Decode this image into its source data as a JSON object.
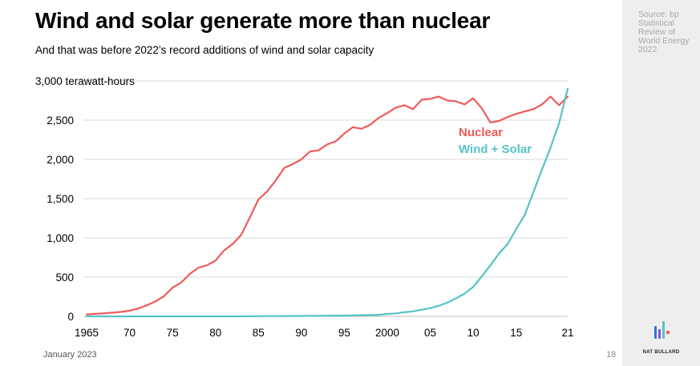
{
  "header": {
    "title": "Wind and solar generate more than nuclear",
    "subtitle": "And that was before 2022’s record additions of wind and solar capacity"
  },
  "sidebar": {
    "source": "Source: bp Statistical Review of World Energy 2022",
    "brand": "NAT BULLARD"
  },
  "footer": {
    "date": "January 2023",
    "page": "18"
  },
  "colors": {
    "nuclear": "#f05a5a",
    "wind_solar": "#56c3c6",
    "grid": "#d9d9d9",
    "logo": [
      "#3a6fd8",
      "#8a4fd1",
      "#56c3c6",
      "#f05a5a"
    ]
  },
  "chart_data": {
    "type": "line",
    "title": "Wind and solar generate more than nuclear",
    "subtitle": "And that was before 2022’s record additions of wind and solar capacity",
    "ylabel": "terawatt-hours",
    "ylabel_top": "3,000 terawatt-hours",
    "ylim": [
      0,
      3000
    ],
    "xlim": [
      1965,
      2021
    ],
    "grid": "horizontal",
    "y_ticks": [
      {
        "value": 3000,
        "label": ""
      },
      {
        "value": 2500,
        "label": "2,500"
      },
      {
        "value": 2000,
        "label": "2,000"
      },
      {
        "value": 1500,
        "label": "1,500"
      },
      {
        "value": 1000,
        "label": "1,000"
      },
      {
        "value": 500,
        "label": "500"
      },
      {
        "value": 0,
        "label": "0"
      }
    ],
    "x_ticks": [
      {
        "value": 1965,
        "label": "1965"
      },
      {
        "value": 1970,
        "label": "70"
      },
      {
        "value": 1975,
        "label": "75"
      },
      {
        "value": 1980,
        "label": "80"
      },
      {
        "value": 1985,
        "label": "85"
      },
      {
        "value": 1990,
        "label": "90"
      },
      {
        "value": 1995,
        "label": "95"
      },
      {
        "value": 2000,
        "label": "2000"
      },
      {
        "value": 2005,
        "label": "05"
      },
      {
        "value": 2010,
        "label": "10"
      },
      {
        "value": 2015,
        "label": "15"
      },
      {
        "value": 2021,
        "label": "21"
      }
    ],
    "x": [
      1965,
      1966,
      1967,
      1968,
      1969,
      1970,
      1971,
      1972,
      1973,
      1974,
      1975,
      1976,
      1977,
      1978,
      1979,
      1980,
      1981,
      1982,
      1983,
      1984,
      1985,
      1986,
      1987,
      1988,
      1989,
      1990,
      1991,
      1992,
      1993,
      1994,
      1995,
      1996,
      1997,
      1998,
      1999,
      2000,
      2001,
      2002,
      2003,
      2004,
      2005,
      2006,
      2007,
      2008,
      2009,
      2010,
      2011,
      2012,
      2013,
      2014,
      2015,
      2016,
      2017,
      2018,
      2019,
      2020,
      2021
    ],
    "series": [
      {
        "name": "Nuclear",
        "values": [
          24,
          32,
          39,
          47,
          56,
          72,
          100,
          140,
          190,
          255,
          365,
          430,
          540,
          620,
          650,
          710,
          840,
          920,
          1040,
          1260,
          1490,
          1590,
          1730,
          1890,
          1940,
          2000,
          2100,
          2115,
          2190,
          2230,
          2330,
          2410,
          2390,
          2440,
          2530,
          2590,
          2660,
          2690,
          2640,
          2760,
          2770,
          2800,
          2750,
          2740,
          2700,
          2780,
          2650,
          2470,
          2490,
          2540,
          2580,
          2610,
          2640,
          2700,
          2800,
          2690,
          2800
        ]
      },
      {
        "name": "Wind + Solar",
        "values": [
          0,
          0,
          0,
          0,
          0,
          0,
          0,
          0,
          0,
          0,
          0,
          0,
          0,
          0,
          0,
          0,
          0,
          0,
          0,
          1,
          2,
          3,
          3,
          4,
          4,
          5,
          6,
          7,
          8,
          9,
          10,
          12,
          14,
          16,
          19,
          31,
          38,
          53,
          63,
          85,
          105,
          135,
          175,
          230,
          290,
          375,
          510,
          650,
          800,
          920,
          1110,
          1290,
          1580,
          1870,
          2150,
          2460,
          2900
        ]
      }
    ]
  }
}
